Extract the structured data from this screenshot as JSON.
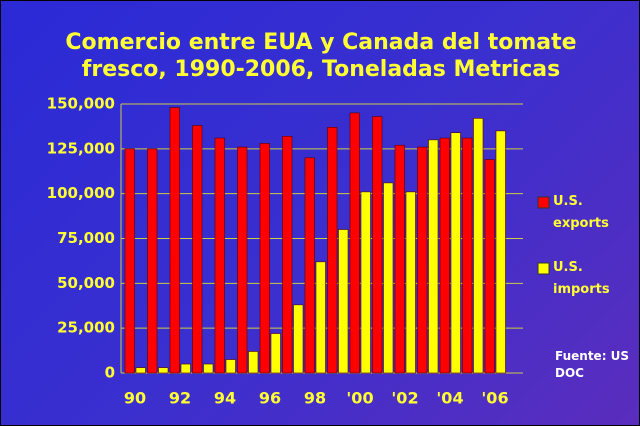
{
  "chart_data": {
    "type": "bar",
    "title": "Comercio entre EUA y Canada del tomate fresco, 1990-2006, Toneladas Metricas",
    "categories": [
      "90",
      null,
      "92",
      null,
      "94",
      null,
      "96",
      null,
      "98",
      null,
      "'00",
      null,
      "'02",
      null,
      "'04",
      null,
      "'06"
    ],
    "series": [
      {
        "name": "U.S. exports",
        "color": "#ff0000",
        "values": [
          125000,
          125000,
          148000,
          138000,
          131000,
          126000,
          128000,
          132000,
          120000,
          137000,
          145000,
          143000,
          127000,
          126000,
          131000,
          131000,
          119000
        ]
      },
      {
        "name": "U.S. imports",
        "color": "#ffff00",
        "values": [
          3000,
          3000,
          5000,
          5000,
          7500,
          12000,
          22000,
          38000,
          62000,
          80000,
          101000,
          106000,
          101000,
          130000,
          134000,
          142000,
          135000
        ]
      }
    ],
    "ylim": [
      0,
      150000
    ],
    "yticks": [
      {
        "value": 0,
        "label": "0"
      },
      {
        "value": 25000,
        "label": "25,000"
      },
      {
        "value": 50000,
        "label": "50,000"
      },
      {
        "value": 75000,
        "label": "75,000"
      },
      {
        "value": 100000,
        "label": "100,000"
      },
      {
        "value": 125000,
        "label": "125,000"
      },
      {
        "value": 150000,
        "label": "150,000"
      }
    ],
    "grid": true,
    "legend": "right",
    "annotation": "Fuente: US DOC"
  }
}
